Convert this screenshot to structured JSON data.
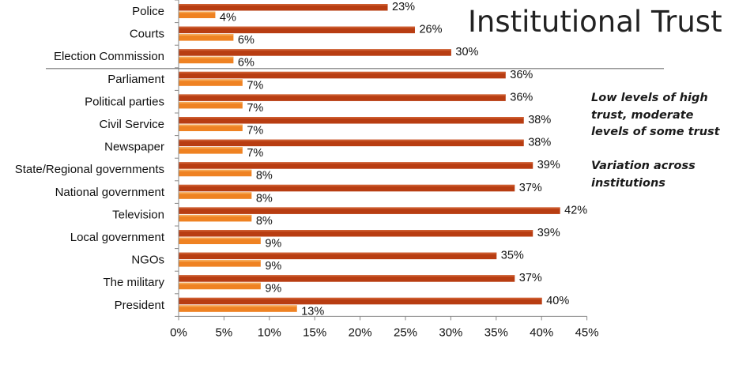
{
  "chart_data": {
    "type": "bar",
    "orientation": "horizontal",
    "title": "Institutional Trust",
    "categories": [
      "Police",
      "Courts",
      "Election Commission",
      "Parliament",
      "Political parties",
      "Civil Service",
      "Newspaper",
      "State/Regional governments",
      "National government",
      "Television",
      "Local government",
      "NGOs",
      "The military",
      "President"
    ],
    "series": [
      {
        "values": [
          23,
          26,
          30,
          36,
          36,
          38,
          38,
          39,
          37,
          42,
          39,
          35,
          37,
          40
        ],
        "color": "#b83d12",
        "value_labels": [
          "23%",
          "26%",
          "30%",
          "36%",
          "36%",
          "38%",
          "38%",
          "39%",
          "37%",
          "42%",
          "39%",
          "35%",
          "37%",
          "40%"
        ]
      },
      {
        "values": [
          4,
          6,
          6,
          7,
          7,
          7,
          7,
          8,
          8,
          8,
          9,
          9,
          9,
          13
        ],
        "color": "#ef8222",
        "value_labels": [
          "4%",
          "6%",
          "6%",
          "7%",
          "7%",
          "7%",
          "7%",
          "8%",
          "8%",
          "8%",
          "9%",
          "9%",
          "9%",
          "13%"
        ]
      }
    ],
    "xlim": [
      0,
      45
    ],
    "x_ticks": [
      "0%",
      "5%",
      "10%",
      "15%",
      "20%",
      "25%",
      "30%",
      "35%",
      "40%",
      "45%"
    ],
    "separator_after_category": "Election Commission",
    "annotations": [
      "Low levels of high trust, moderate levels of some trust",
      "Variation across institutions"
    ]
  },
  "notes": {
    "note1_lines": [
      "Low levels of high",
      "trust, moderate",
      "levels of some trust"
    ],
    "note2_lines": [
      "Variation across",
      "institutions"
    ]
  }
}
